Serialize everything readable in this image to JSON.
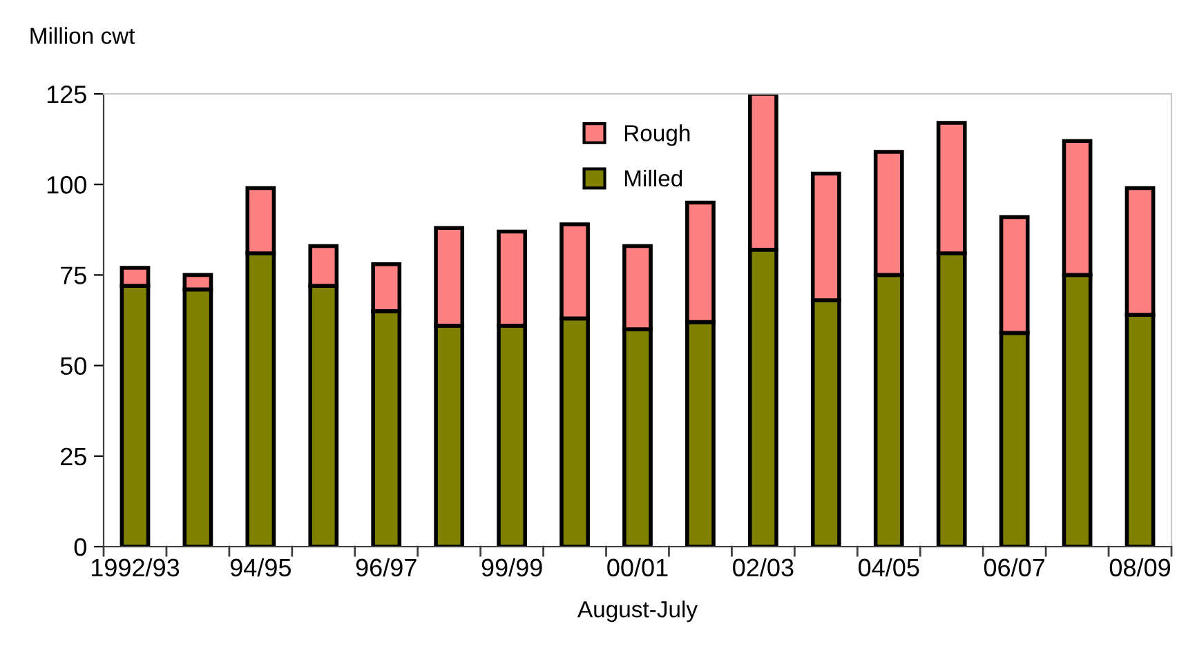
{
  "chart_data": {
    "type": "bar",
    "stacked": true,
    "ylabel": "Million cwt",
    "xlabel": "August-July",
    "categories": [
      "1992/93",
      null,
      "94/95",
      null,
      "96/97",
      null,
      "99/99",
      null,
      "00/01",
      null,
      "02/03",
      null,
      "04/05",
      null,
      "06/07",
      null,
      "08/09"
    ],
    "series": [
      {
        "name": "Milled",
        "color": "#808000",
        "values": [
          72,
          71,
          81,
          72,
          65,
          61,
          61,
          63,
          60,
          62,
          82,
          68,
          75,
          81,
          59,
          75,
          64
        ]
      },
      {
        "name": "Rough",
        "color": "#ff8080",
        "values": [
          5,
          4,
          18,
          11,
          13,
          27,
          26,
          26,
          23,
          33,
          43,
          35,
          34,
          36,
          32,
          37,
          35
        ]
      }
    ],
    "ylim": [
      0,
      125
    ],
    "yticks": [
      0,
      25,
      50,
      75,
      100,
      125
    ],
    "grid": false,
    "legend": "top"
  }
}
